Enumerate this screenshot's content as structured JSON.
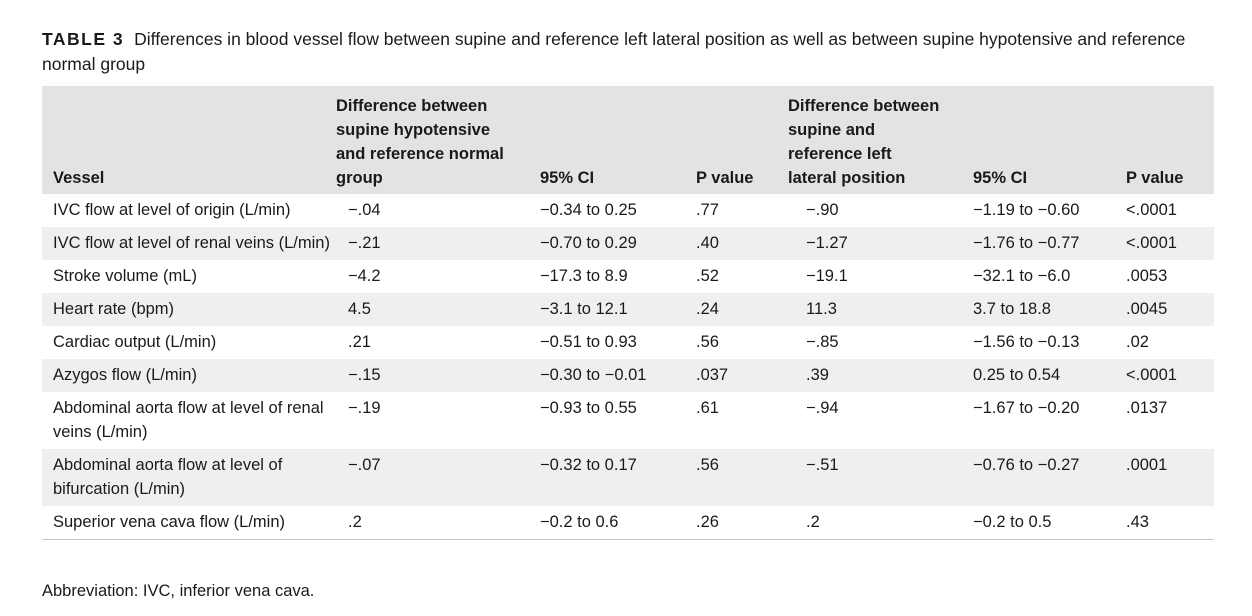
{
  "caption": {
    "label": "TABLE 3",
    "text": "Differences in blood vessel flow between supine and reference left lateral position as well as between supine hypotensive and reference normal group"
  },
  "columns": [
    "Vessel",
    "Difference between supine hypotensive and reference normal group",
    "95% CI",
    "P value",
    "Difference between supine and reference left lateral position",
    "95% CI",
    "P value"
  ],
  "rows": [
    [
      "IVC flow at level of origin (L/min)",
      "−.04",
      "−0.34 to 0.25",
      ".77",
      "−.90",
      "−1.19 to −0.60",
      "<.0001"
    ],
    [
      "IVC flow at level of renal veins (L/min)",
      "−.21",
      "−0.70 to 0.29",
      ".40",
      "−1.27",
      "−1.76 to −0.77",
      "<.0001"
    ],
    [
      "Stroke volume (mL)",
      "−4.2",
      "−17.3 to 8.9",
      ".52",
      "−19.1",
      "−32.1 to −6.0",
      ".0053"
    ],
    [
      "Heart rate (bpm)",
      "4.5",
      "−3.1 to 12.1",
      ".24",
      "11.3",
      "3.7 to 18.8",
      ".0045"
    ],
    [
      "Cardiac output (L/min)",
      ".21",
      "−0.51 to 0.93",
      ".56",
      "−.85",
      "−1.56 to −0.13",
      ".02"
    ],
    [
      "Azygos flow (L/min)",
      "−.15",
      "−0.30 to −0.01",
      ".037",
      ".39",
      "0.25 to 0.54",
      "<.0001"
    ],
    [
      "Abdominal aorta flow at level of renal veins (L/min)",
      "−.19",
      "−0.93 to 0.55",
      ".61",
      "−.94",
      "−1.67 to −0.20",
      ".0137"
    ],
    [
      "Abdominal aorta flow at level of bifurcation (L/min)",
      "−.07",
      "−0.32 to 0.17",
      ".56",
      "−.51",
      "−0.76 to −0.27",
      ".0001"
    ],
    [
      "Superior vena cava flow (L/min)",
      ".2",
      "−0.2 to 0.6",
      ".26",
      ".2",
      "−0.2 to 0.5",
      ".43"
    ]
  ],
  "footnote": "Abbreviation: IVC, inferior vena cava."
}
